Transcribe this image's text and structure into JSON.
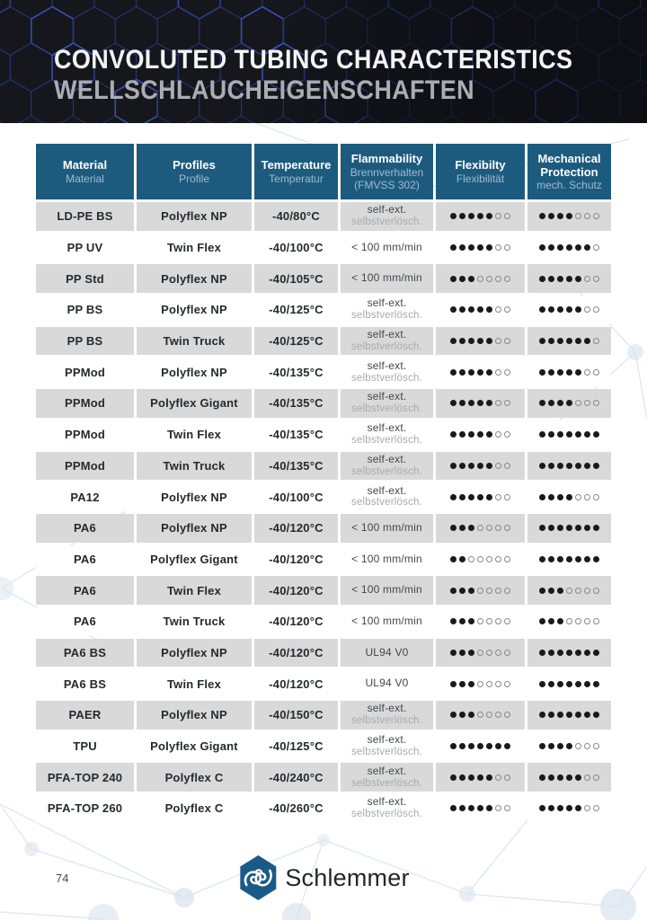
{
  "banner": {
    "title": "CONVOLUTED TUBING CHARACTERISTICS",
    "subtitle": "WELLSCHLAUCHEIGENSCHAFTEN"
  },
  "table": {
    "columns": [
      {
        "en": "Material",
        "de": "Material"
      },
      {
        "en": "Profiles",
        "de": "Profile"
      },
      {
        "en": "Temperature",
        "de": "Temperatur"
      },
      {
        "en": "Flammability",
        "de": "Brennverhalten",
        "note": "(FMVSS 302)"
      },
      {
        "en": "Flexibilty",
        "de": "Flexibilität"
      },
      {
        "en": "Mechanical Protection",
        "de": "mech. Schutz"
      }
    ],
    "rating_max": 7,
    "rows": [
      {
        "material": "LD-PE BS",
        "profile": "Polyflex NP",
        "temperature": "-40/80°C",
        "flammability_en": "self-ext.",
        "flammability_de": "selbstverlösch.",
        "flexibility": 5,
        "mechanical": 4
      },
      {
        "material": "PP UV",
        "profile": "Twin Flex",
        "temperature": "-40/100°C",
        "flammability_en": "< 100 mm/min",
        "flammability_de": "",
        "flexibility": 5,
        "mechanical": 6
      },
      {
        "material": "PP Std",
        "profile": "Polyflex NP",
        "temperature": "-40/105°C",
        "flammability_en": "< 100 mm/min",
        "flammability_de": "",
        "flexibility": 3,
        "mechanical": 5
      },
      {
        "material": "PP BS",
        "profile": "Polyflex NP",
        "temperature": "-40/125°C",
        "flammability_en": "self-ext.",
        "flammability_de": "selbstverlösch.",
        "flexibility": 5,
        "mechanical": 5
      },
      {
        "material": "PP BS",
        "profile": "Twin Truck",
        "temperature": "-40/125°C",
        "flammability_en": "self-ext.",
        "flammability_de": "selbstverlösch.",
        "flexibility": 5,
        "mechanical": 6
      },
      {
        "material": "PPMod",
        "profile": "Polyflex NP",
        "temperature": "-40/135°C",
        "flammability_en": "self-ext.",
        "flammability_de": "selbstverlösch.",
        "flexibility": 5,
        "mechanical": 5
      },
      {
        "material": "PPMod",
        "profile": "Polyflex Gigant",
        "temperature": "-40/135°C",
        "flammability_en": "self-ext.",
        "flammability_de": "selbstverlösch.",
        "flexibility": 5,
        "mechanical": 4
      },
      {
        "material": "PPMod",
        "profile": "Twin Flex",
        "temperature": "-40/135°C",
        "flammability_en": "self-ext.",
        "flammability_de": "selbstverlösch.",
        "flexibility": 5,
        "mechanical": 7
      },
      {
        "material": "PPMod",
        "profile": "Twin Truck",
        "temperature": "-40/135°C",
        "flammability_en": "self-ext.",
        "flammability_de": "selbstverlösch.",
        "flexibility": 5,
        "mechanical": 7
      },
      {
        "material": "PA12",
        "profile": "Polyflex NP",
        "temperature": "-40/100°C",
        "flammability_en": "self-ext.",
        "flammability_de": "selbstverlösch.",
        "flexibility": 5,
        "mechanical": 4
      },
      {
        "material": "PA6",
        "profile": "Polyflex NP",
        "temperature": "-40/120°C",
        "flammability_en": "< 100 mm/min",
        "flammability_de": "",
        "flexibility": 3,
        "mechanical": 7
      },
      {
        "material": "PA6",
        "profile": "Polyflex Gigant",
        "temperature": "-40/120°C",
        "flammability_en": "< 100 mm/min",
        "flammability_de": "",
        "flexibility": 2,
        "mechanical": 7
      },
      {
        "material": "PA6",
        "profile": "Twin Flex",
        "temperature": "-40/120°C",
        "flammability_en": "< 100 mm/min",
        "flammability_de": "",
        "flexibility": 3,
        "mechanical": 3
      },
      {
        "material": "PA6",
        "profile": "Twin Truck",
        "temperature": "-40/120°C",
        "flammability_en": "< 100 mm/min",
        "flammability_de": "",
        "flexibility": 3,
        "mechanical": 3
      },
      {
        "material": "PA6 BS",
        "profile": "Polyflex NP",
        "temperature": "-40/120°C",
        "flammability_en": "UL94 V0",
        "flammability_de": "",
        "flexibility": 3,
        "mechanical": 7
      },
      {
        "material": "PA6 BS",
        "profile": "Twin Flex",
        "temperature": "-40/120°C",
        "flammability_en": "UL94 V0",
        "flammability_de": "",
        "flexibility": 3,
        "mechanical": 7
      },
      {
        "material": "PAER",
        "profile": "Polyflex NP",
        "temperature": "-40/150°C",
        "flammability_en": "self-ext.",
        "flammability_de": "selbstverlösch.",
        "flexibility": 3,
        "mechanical": 7
      },
      {
        "material": "TPU",
        "profile": "Polyflex Gigant",
        "temperature": "-40/125°C",
        "flammability_en": "self-ext.",
        "flammability_de": "selbstverlösch.",
        "flexibility": 7,
        "mechanical": 4
      },
      {
        "material": "PFA-TOP 240",
        "profile": "Polyflex C",
        "temperature": "-40/240°C",
        "flammability_en": "self-ext.",
        "flammability_de": "selbstverlösch.",
        "flexibility": 5,
        "mechanical": 5
      },
      {
        "material": "PFA-TOP 260",
        "profile": "Polyflex C",
        "temperature": "-40/260°C",
        "flammability_en": "self-ext.",
        "flammability_de": "selbstverlösch.",
        "flexibility": 5,
        "mechanical": 5
      }
    ]
  },
  "footer": {
    "page_number": "74",
    "logo_text": "Schlemmer"
  },
  "colors": {
    "header_bg": "#1d5b7e",
    "header_sub_text": "#9fbacf",
    "row_alt_bg": "#d9d9d9",
    "banner_bg": "#15171c",
    "banner_hex_line": "#26336f",
    "banner_hex_bright": "#3b55c0",
    "dot_filled": "#1a1a1a",
    "logo_hex": "#1b5a86"
  }
}
